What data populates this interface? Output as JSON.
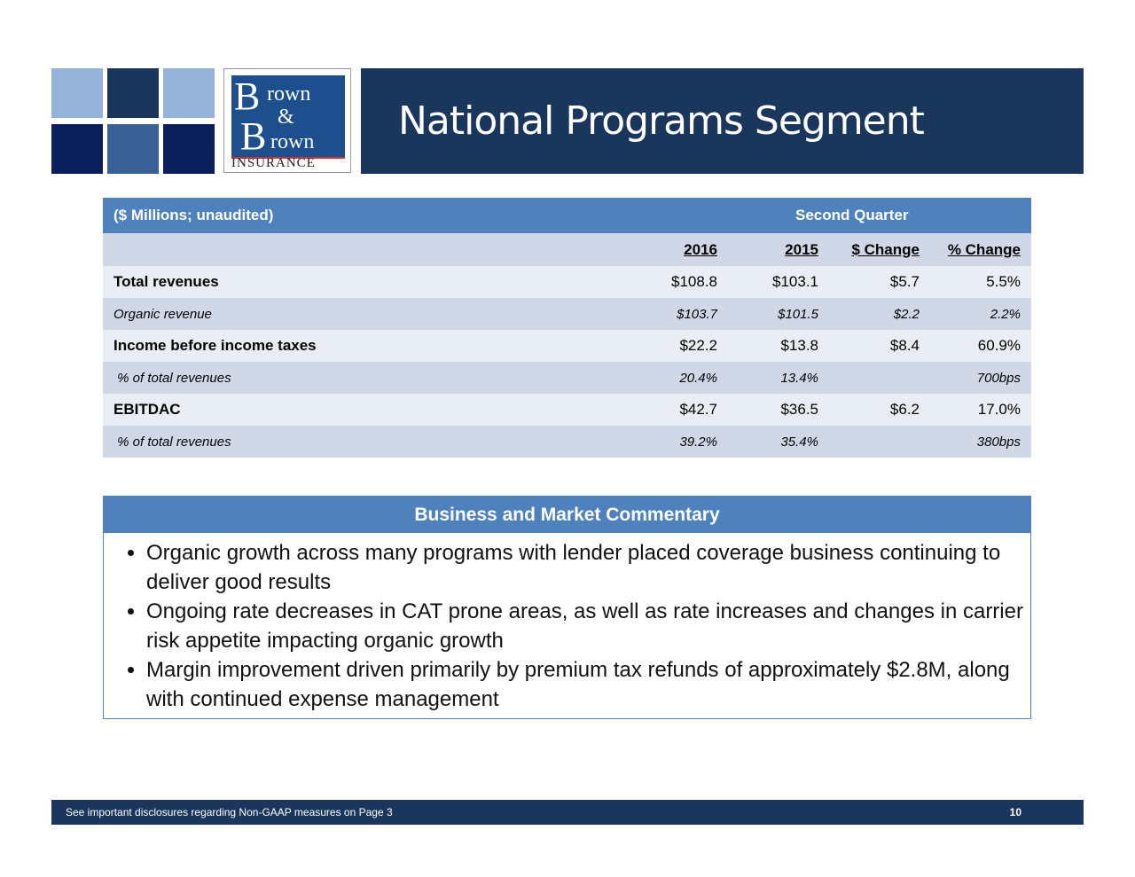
{
  "header": {
    "title": "National Programs Segment",
    "logo_text": "Brown & Brown INSURANCE"
  },
  "colors": {
    "navy": "#1b365d",
    "table_header": "#4f81bd",
    "row_light": "#e9edf4",
    "row_dark": "#d0d8e8"
  },
  "table": {
    "caption": "($ Millions; unaudited)",
    "period": "Second Quarter",
    "columns": [
      "2016",
      "2015",
      "$ Change",
      "% Change"
    ],
    "rows": [
      {
        "label": "Total revenues",
        "values": [
          "$108.8",
          "$103.1",
          "$5.7",
          "5.5%"
        ]
      },
      {
        "label": "Organic revenue",
        "values": [
          "$103.7",
          "$101.5",
          "$2.2",
          "2.2%"
        ]
      },
      {
        "label": "Income before income taxes",
        "values": [
          "$22.2",
          "$13.8",
          "$8.4",
          "60.9%"
        ]
      },
      {
        "label": " % of total revenues",
        "values": [
          "20.4%",
          "13.4%",
          "",
          "700bps"
        ]
      },
      {
        "label": "EBITDAC",
        "values": [
          "$42.7",
          "$36.5",
          "$6.2",
          "17.0%"
        ]
      },
      {
        "label": " % of total revenues",
        "values": [
          "39.2%",
          "35.4%",
          "",
          "380bps"
        ]
      }
    ]
  },
  "commentary": {
    "title": "Business and Market Commentary",
    "bullets": [
      "Organic growth across many programs with lender placed coverage business continuing to deliver good results",
      "Ongoing rate decreases in CAT prone areas, as well as rate increases and changes in carrier risk appetite impacting organic growth",
      "Margin improvement driven primarily by premium tax refunds of approximately $2.8M, along with continued expense management"
    ]
  },
  "footer": {
    "disclosure": "See important disclosures regarding Non-GAAP measures on Page 3",
    "page": "10"
  }
}
